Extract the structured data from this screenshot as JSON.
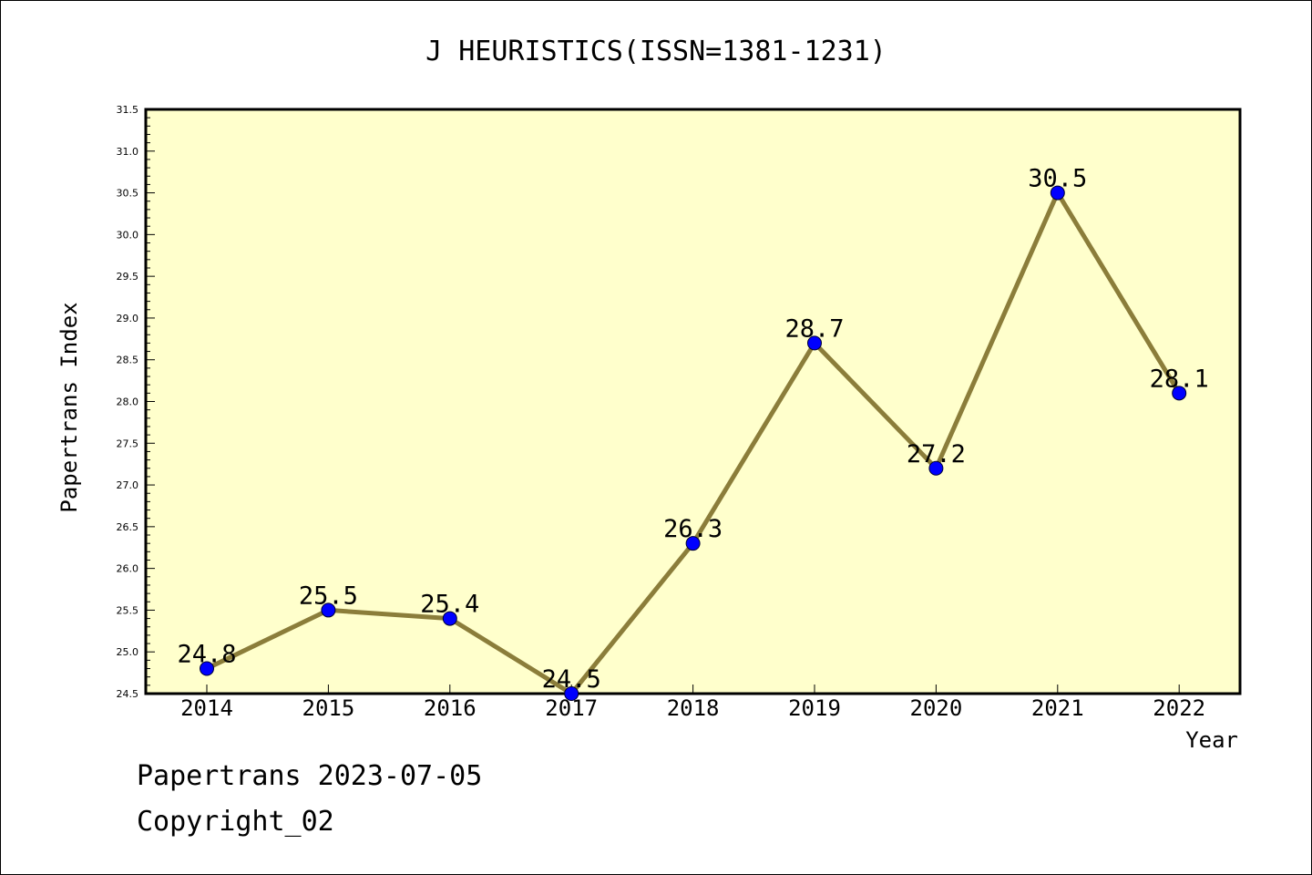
{
  "chart_data": {
    "type": "line",
    "title": "J HEURISTICS(ISSN=1381-1231)",
    "xlabel": "Year",
    "ylabel": "Papertrans Index",
    "x": [
      "2014",
      "2015",
      "2016",
      "2017",
      "2018",
      "2019",
      "2020",
      "2021",
      "2022"
    ],
    "series": [
      {
        "values": [
          24.8,
          25.5,
          25.4,
          24.5,
          26.3,
          28.7,
          27.2,
          30.5,
          28.1
        ]
      }
    ],
    "data_labels": [
      "24.8",
      "25.5",
      "25.4",
      "24.5",
      "26.3",
      "28.7",
      "27.2",
      "30.5",
      "28.1"
    ],
    "ylim": [
      24.5,
      31.5
    ],
    "yticks": [
      "24.5",
      "25.0",
      "25.5",
      "26.0",
      "26.5",
      "27.0",
      "27.5",
      "28.0",
      "28.5",
      "29.0",
      "29.5",
      "30.0",
      "30.5",
      "31.0",
      "31.5"
    ],
    "grid": false,
    "colors": {
      "plot_bg": "#ffffcc",
      "line": "#8b7d3a",
      "marker": "#0000ff"
    }
  },
  "footer": {
    "line1": "Papertrans 2023-07-05",
    "line2": "Copyright_02"
  }
}
